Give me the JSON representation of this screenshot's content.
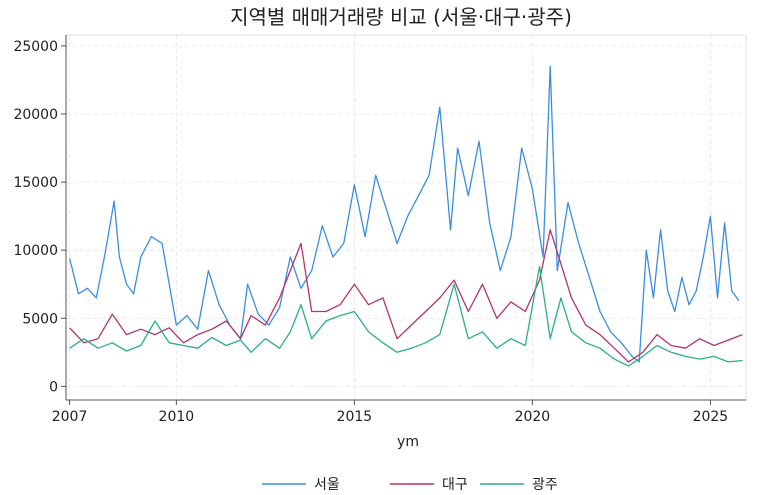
{
  "chart_data": {
    "type": "line",
    "title": "지역별 매매거래량 비교 (서울·대구·광주)",
    "xlabel": "ym",
    "ylabel": "",
    "xlim": [
      2006.9,
      2026.0
    ],
    "ylim": [
      -1000,
      25800
    ],
    "x_ticks": [
      2007,
      2010,
      2015,
      2020,
      2025
    ],
    "x_tick_labels": [
      "2007",
      "2010",
      "2015",
      "2020",
      "2025"
    ],
    "y_ticks": [
      0,
      5000,
      10000,
      15000,
      20000,
      25000
    ],
    "y_tick_labels": [
      "0",
      "5000",
      "10000",
      "15000",
      "20000",
      "25000"
    ],
    "grid": true,
    "legend_position": "bottom",
    "series": [
      {
        "name": "서울",
        "color": "#3a8ee0",
        "x": [
          2007.0,
          2007.25,
          2007.5,
          2007.75,
          2008.0,
          2008.25,
          2008.4,
          2008.6,
          2008.8,
          2009.0,
          2009.3,
          2009.6,
          2009.8,
          2010.0,
          2010.3,
          2010.6,
          2010.9,
          2011.2,
          2011.5,
          2011.8,
          2012.0,
          2012.3,
          2012.6,
          2012.9,
          2013.2,
          2013.5,
          2013.8,
          2014.1,
          2014.4,
          2014.7,
          2015.0,
          2015.3,
          2015.6,
          2015.9,
          2016.2,
          2016.5,
          2016.8,
          2017.1,
          2017.4,
          2017.7,
          2017.9,
          2018.2,
          2018.5,
          2018.8,
          2019.1,
          2019.4,
          2019.7,
          2020.0,
          2020.3,
          2020.5,
          2020.7,
          2021.0,
          2021.3,
          2021.6,
          2021.9,
          2022.2,
          2022.5,
          2022.8,
          2023.0,
          2023.2,
          2023.4,
          2023.6,
          2023.8,
          2024.0,
          2024.2,
          2024.4,
          2024.6,
          2024.8,
          2025.0,
          2025.2,
          2025.4,
          2025.6,
          2025.8
        ],
        "values": [
          9400,
          6800,
          7200,
          6500,
          9800,
          13600,
          9500,
          7500,
          6800,
          9500,
          11000,
          10500,
          7500,
          4500,
          5200,
          4200,
          8500,
          6000,
          4500,
          3500,
          7500,
          5300,
          4500,
          5800,
          9500,
          7200,
          8500,
          11800,
          9500,
          10500,
          14800,
          11000,
          15500,
          13000,
          10500,
          12500,
          14000,
          15500,
          20500,
          11500,
          17500,
          14000,
          18000,
          12000,
          8500,
          11000,
          17500,
          14500,
          9500,
          23500,
          8500,
          13500,
          10500,
          8000,
          5500,
          4000,
          3200,
          2200,
          1800,
          10000,
          6500,
          11500,
          7000,
          5500,
          8000,
          6000,
          7000,
          9500,
          12500,
          6500,
          12000,
          7000,
          6300
        ]
      },
      {
        "name": "대구",
        "color": "#b6336b",
        "x": [
          2007.0,
          2007.4,
          2007.8,
          2008.2,
          2008.6,
          2009.0,
          2009.4,
          2009.8,
          2010.2,
          2010.6,
          2011.0,
          2011.4,
          2011.8,
          2012.1,
          2012.5,
          2012.9,
          2013.2,
          2013.5,
          2013.8,
          2014.2,
          2014.6,
          2015.0,
          2015.4,
          2015.8,
          2016.2,
          2016.6,
          2017.0,
          2017.4,
          2017.8,
          2018.2,
          2018.6,
          2019.0,
          2019.4,
          2019.8,
          2020.2,
          2020.5,
          2020.8,
          2021.1,
          2021.5,
          2021.9,
          2022.3,
          2022.7,
          2023.1,
          2023.5,
          2023.9,
          2024.3,
          2024.7,
          2025.1,
          2025.5,
          2025.9
        ],
        "values": [
          4300,
          3200,
          3500,
          5300,
          3800,
          4200,
          3800,
          4300,
          3200,
          3800,
          4200,
          4800,
          3500,
          5200,
          4500,
          6500,
          8500,
          10500,
          5500,
          5500,
          6000,
          7500,
          6000,
          6500,
          3500,
          4500,
          5500,
          6500,
          7800,
          5500,
          7500,
          5000,
          6200,
          5500,
          7800,
          11500,
          9000,
          6500,
          4500,
          3800,
          2800,
          1800,
          2500,
          3800,
          3000,
          2800,
          3500,
          3000,
          3400,
          3800
        ]
      },
      {
        "name": "광주",
        "color": "#29b084",
        "x": [
          2007.0,
          2007.4,
          2007.8,
          2008.2,
          2008.6,
          2009.0,
          2009.4,
          2009.8,
          2010.2,
          2010.6,
          2011.0,
          2011.4,
          2011.8,
          2012.1,
          2012.5,
          2012.9,
          2013.2,
          2013.5,
          2013.8,
          2014.2,
          2014.6,
          2015.0,
          2015.4,
          2015.8,
          2016.2,
          2016.6,
          2017.0,
          2017.4,
          2017.8,
          2018.2,
          2018.6,
          2019.0,
          2019.4,
          2019.8,
          2020.2,
          2020.5,
          2020.8,
          2021.1,
          2021.5,
          2021.9,
          2022.3,
          2022.7,
          2023.1,
          2023.5,
          2023.9,
          2024.3,
          2024.7,
          2025.1,
          2025.5,
          2025.9
        ],
        "values": [
          2800,
          3500,
          2800,
          3200,
          2600,
          3000,
          4800,
          3200,
          3000,
          2800,
          3600,
          3000,
          3400,
          2500,
          3500,
          2800,
          4000,
          6000,
          3500,
          4800,
          5200,
          5500,
          4000,
          3200,
          2500,
          2800,
          3200,
          3800,
          7500,
          3500,
          4000,
          2800,
          3500,
          3000,
          8800,
          3500,
          6500,
          4000,
          3200,
          2800,
          2000,
          1500,
          2200,
          3000,
          2500,
          2200,
          2000,
          2200,
          1800,
          1900
        ]
      }
    ]
  }
}
